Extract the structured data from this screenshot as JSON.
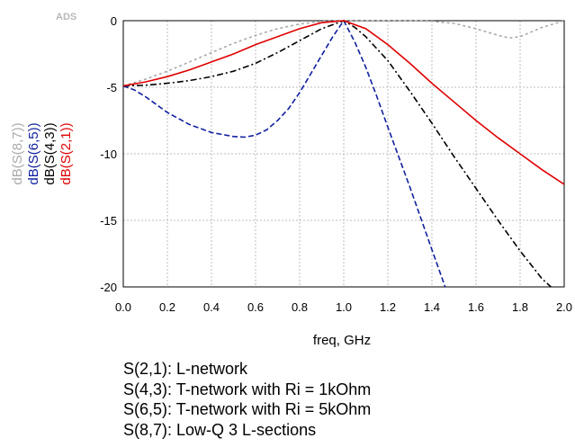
{
  "chart_data": {
    "type": "line",
    "brand": "ADS",
    "xlabel": "freq, GHz",
    "xlim": [
      0.0,
      2.0
    ],
    "ylim": [
      -20,
      0
    ],
    "xticks": [
      "0.0",
      "0.2",
      "0.4",
      "0.6",
      "0.8",
      "1.0",
      "1.2",
      "1.4",
      "1.6",
      "1.8",
      "2.0"
    ],
    "yticks": [
      "0",
      "-5",
      "-10",
      "-15",
      "-20"
    ],
    "grid": true,
    "series": [
      {
        "name": "dB(S(8,7))",
        "color": "#aaaaaa",
        "dash": "3,3",
        "x": [
          0.0,
          0.1,
          0.2,
          0.3,
          0.4,
          0.5,
          0.6,
          0.7,
          0.8,
          0.9,
          1.0,
          1.1,
          1.2,
          1.3,
          1.4,
          1.5,
          1.6,
          1.7,
          1.75,
          1.8,
          1.9,
          2.0
        ],
        "y": [
          -4.9,
          -4.4,
          -3.8,
          -3.1,
          -2.4,
          -1.7,
          -1.1,
          -0.6,
          -0.25,
          -0.05,
          0.0,
          -0.02,
          -0.02,
          0.0,
          -0.05,
          -0.2,
          -0.6,
          -1.1,
          -1.3,
          -1.2,
          -0.5,
          0.0
        ]
      },
      {
        "name": "dB(S(6,5))",
        "color": "#1020a0",
        "dash": "6,3",
        "x": [
          0.0,
          0.05,
          0.1,
          0.15,
          0.2,
          0.3,
          0.4,
          0.5,
          0.55,
          0.6,
          0.65,
          0.7,
          0.75,
          0.8,
          0.85,
          0.9,
          0.95,
          1.0,
          1.05,
          1.1,
          1.15,
          1.2,
          1.3,
          1.4,
          1.46
        ],
        "y": [
          -4.9,
          -5.2,
          -5.7,
          -6.3,
          -6.9,
          -7.8,
          -8.4,
          -8.7,
          -8.75,
          -8.6,
          -8.2,
          -7.5,
          -6.6,
          -5.4,
          -4.0,
          -2.6,
          -1.2,
          0.0,
          -1.6,
          -3.5,
          -5.7,
          -8.0,
          -12.5,
          -17.2,
          -20.0
        ]
      },
      {
        "name": "dB(S(4,3))",
        "color": "#000000",
        "dash": "7,3,2,3",
        "x": [
          0.0,
          0.1,
          0.2,
          0.3,
          0.4,
          0.5,
          0.6,
          0.7,
          0.8,
          0.9,
          1.0,
          1.05,
          1.1,
          1.2,
          1.3,
          1.4,
          1.5,
          1.6,
          1.7,
          1.8,
          1.9,
          1.94
        ],
        "y": [
          -4.9,
          -4.85,
          -4.7,
          -4.5,
          -4.2,
          -3.8,
          -3.2,
          -2.4,
          -1.5,
          -0.6,
          0.0,
          -0.5,
          -1.2,
          -3.0,
          -5.3,
          -7.7,
          -10.2,
          -12.6,
          -15.0,
          -17.3,
          -19.4,
          -20.0
        ]
      },
      {
        "name": "dB(S(2,1))",
        "color": "#e00000",
        "dash": "",
        "x": [
          0.0,
          0.1,
          0.2,
          0.3,
          0.4,
          0.5,
          0.6,
          0.7,
          0.8,
          0.9,
          1.0,
          1.1,
          1.2,
          1.3,
          1.4,
          1.5,
          1.6,
          1.7,
          1.8,
          1.9,
          2.0
        ],
        "y": [
          -4.9,
          -4.6,
          -4.2,
          -3.7,
          -3.1,
          -2.5,
          -1.8,
          -1.2,
          -0.6,
          -0.15,
          0.0,
          -0.6,
          -1.8,
          -3.2,
          -4.7,
          -6.1,
          -7.5,
          -8.8,
          -10.0,
          -11.2,
          -12.3
        ]
      }
    ]
  },
  "notes": [
    "S(2,1): L-network",
    "S(4,3): T-network with Ri = 1kOhm",
    "S(6,5): T-network with Ri = 5kOhm",
    "S(8,7): Low-Q 3 L-sections"
  ]
}
